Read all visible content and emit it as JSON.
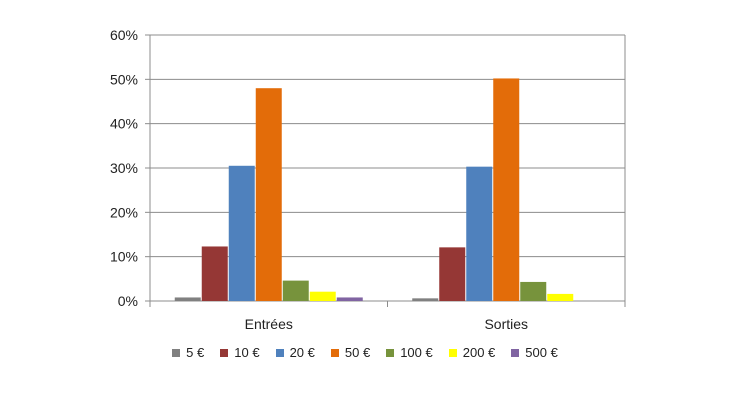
{
  "chart_data": {
    "type": "bar",
    "categories": [
      "Entrées",
      "Sorties"
    ],
    "series": [
      {
        "name": "5 €",
        "values": [
          0.8,
          0.6
        ],
        "color": "#808080"
      },
      {
        "name": "10 €",
        "values": [
          12.3,
          12.1
        ],
        "color": "#953735"
      },
      {
        "name": "20 €",
        "values": [
          30.5,
          30.3
        ],
        "color": "#4f81bd"
      },
      {
        "name": "50 €",
        "values": [
          48.0,
          50.2
        ],
        "color": "#e36c09"
      },
      {
        "name": "100 €",
        "values": [
          4.6,
          4.3
        ],
        "color": "#77933c"
      },
      {
        "name": "200 €",
        "values": [
          2.1,
          1.6
        ],
        "color": "#ffff00"
      },
      {
        "name": "500 €",
        "values": [
          0.8,
          0.0
        ],
        "color": "#8064a2"
      }
    ],
    "ylim": [
      0,
      60
    ],
    "yticks": [
      "0%",
      "10%",
      "20%",
      "30%",
      "40%",
      "50%",
      "60%"
    ],
    "grid": true,
    "legend_position": "bottom"
  }
}
